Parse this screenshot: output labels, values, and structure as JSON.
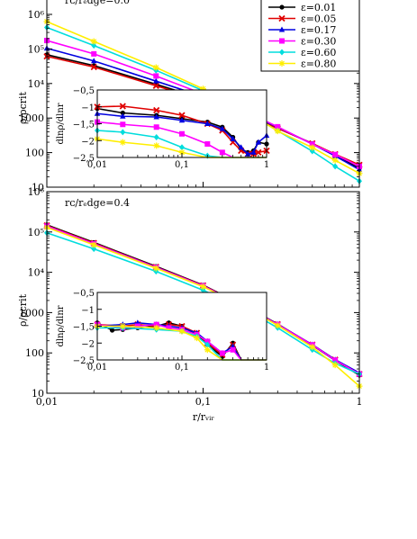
{
  "chart_data": [
    {
      "type": "line",
      "panel": "top",
      "annotation": "rᴄ/rₑdge=0.0",
      "xlabel": "r/rᵥᵢᵣ",
      "ylabel": "ρ/ρcrit",
      "xscale": "log",
      "yscale": "log",
      "xlim": [
        0.01,
        1
      ],
      "ylim": [
        10,
        1000000
      ],
      "x_ticks": [
        "0,01",
        "0,1",
        "1"
      ],
      "y_ticks": [
        "10",
        "100",
        "1000",
        "10⁴",
        "10⁵",
        "10⁶"
      ],
      "legend_position": "top-right",
      "series": [
        {
          "name": "ε=0.01",
          "color": "#000000",
          "marker": "circle",
          "x": [
            0.01,
            0.02,
            0.05,
            0.1,
            0.2,
            0.3,
            0.5,
            0.7,
            1.0
          ],
          "y": [
            68000,
            33000,
            9500,
            3600,
            1120,
            520,
            182,
            83,
            35
          ]
        },
        {
          "name": "ε=0.05",
          "color": "#e00000",
          "marker": "x",
          "x": [
            0.01,
            0.02,
            0.05,
            0.1,
            0.2,
            0.3,
            0.5,
            0.7,
            1.0
          ],
          "y": [
            61000,
            30000,
            8600,
            3300,
            1070,
            505,
            185,
            90,
            44
          ]
        },
        {
          "name": "ε=0.17",
          "color": "#0000e0",
          "marker": "triangle",
          "x": [
            0.01,
            0.02,
            0.05,
            0.1,
            0.2,
            0.3,
            0.5,
            0.7,
            1.0
          ],
          "y": [
            105000,
            45000,
            11700,
            4200,
            1230,
            545,
            178,
            80,
            32
          ]
        },
        {
          "name": "ε=0.30",
          "color": "#ff00ff",
          "marker": "square",
          "x": [
            0.01,
            0.02,
            0.05,
            0.1,
            0.2,
            0.3,
            0.5,
            0.7,
            1.0
          ],
          "y": [
            175000,
            72000,
            16500,
            5000,
            1340,
            560,
            175,
            88,
            40
          ]
        },
        {
          "name": "ε=0.60",
          "color": "#00dddd",
          "marker": "diamond",
          "x": [
            0.01,
            0.02,
            0.05,
            0.1,
            0.2,
            0.3,
            0.5,
            0.7,
            1.0
          ],
          "y": [
            420000,
            125000,
            24000,
            6200,
            1250,
            430,
            110,
            40,
            15
          ]
        },
        {
          "name": "ε=0.80",
          "color": "#ffee00",
          "marker": "star",
          "x": [
            0.01,
            0.02,
            0.05,
            0.1,
            0.2,
            0.3,
            0.5,
            0.7,
            1.0
          ],
          "y": [
            620000,
            165000,
            29000,
            7000,
            1300,
            420,
            140,
            60,
            25
          ]
        }
      ],
      "inset": {
        "ylabel": "dlnρ/dlnr",
        "xscale": "log",
        "xlim": [
          0.01,
          1
        ],
        "ylim": [
          -2.5,
          -0.5
        ],
        "x_ticks": [
          "0,01",
          "0,1",
          "1"
        ],
        "y_ticks": [
          "−0,5",
          "−1",
          "−1,5",
          "−2",
          "−2,5"
        ],
        "series": [
          {
            "name": "ε=0.01",
            "x": [
              0.01,
              0.02,
              0.05,
              0.1,
              0.2,
              0.3,
              0.4,
              0.5,
              0.6,
              0.7,
              0.8,
              1.0
            ],
            "y": [
              -1.05,
              -1.18,
              -1.25,
              -1.35,
              -1.45,
              -1.6,
              -1.9,
              -2.25,
              -2.35,
              -2.3,
              -2.05,
              -2.1
            ]
          },
          {
            "name": "ε=0.05",
            "x": [
              0.01,
              0.02,
              0.05,
              0.1,
              0.2,
              0.3,
              0.4,
              0.5,
              0.6,
              0.7,
              0.8,
              1.0
            ],
            "y": [
              -1.0,
              -0.98,
              -1.1,
              -1.25,
              -1.5,
              -1.7,
              -2.05,
              -2.3,
              -2.4,
              -2.4,
              -2.35,
              -2.3
            ]
          },
          {
            "name": "ε=0.17",
            "x": [
              0.01,
              0.02,
              0.05,
              0.1,
              0.2,
              0.3,
              0.4,
              0.5,
              0.6,
              0.7,
              0.8,
              1.0
            ],
            "y": [
              -1.2,
              -1.28,
              -1.3,
              -1.4,
              -1.5,
              -1.65,
              -1.95,
              -2.2,
              -2.4,
              -2.35,
              -2.05,
              -1.85
            ]
          },
          {
            "name": "ε=0.30",
            "x": [
              0.01,
              0.02,
              0.05,
              0.1,
              0.2,
              0.3,
              0.4,
              0.5,
              1.0
            ],
            "y": [
              -1.45,
              -1.52,
              -1.6,
              -1.8,
              -2.1,
              -2.35,
              -2.5,
              -2.5,
              -2.5
            ]
          },
          {
            "name": "ε=0.60",
            "x": [
              0.01,
              0.02,
              0.05,
              0.1,
              0.2,
              0.3,
              0.4,
              1.0
            ],
            "y": [
              -1.7,
              -1.75,
              -1.9,
              -2.2,
              -2.45,
              -2.5,
              -2.5,
              -2.5
            ]
          },
          {
            "name": "ε=0.80",
            "x": [
              0.01,
              0.02,
              0.05,
              0.1,
              0.2,
              0.3,
              1.0
            ],
            "y": [
              -1.95,
              -2.05,
              -2.15,
              -2.35,
              -2.5,
              -2.5,
              -2.5
            ]
          }
        ]
      }
    },
    {
      "type": "line",
      "panel": "bottom",
      "annotation": "rᴄ/rₑdge=0.4",
      "xlabel": "r/rᵥᵢᵣ",
      "ylabel": "ρ/ρcrit",
      "xscale": "log",
      "yscale": "log",
      "xlim": [
        0.01,
        1
      ],
      "ylim": [
        10,
        1000000
      ],
      "x_ticks": [
        "0,01",
        "0,1",
        "1"
      ],
      "y_ticks": [
        "10",
        "100",
        "1000",
        "10⁴",
        "10⁵",
        "10⁶"
      ],
      "series": [
        {
          "name": "ε=0.01",
          "color": "#000000",
          "marker": "circle",
          "x": [
            0.01,
            0.02,
            0.05,
            0.1,
            0.2,
            0.3,
            0.5,
            0.7,
            1.0
          ],
          "y": [
            150000,
            55000,
            14000,
            4800,
            1250,
            520,
            155,
            65,
            28
          ]
        },
        {
          "name": "ε=0.05",
          "color": "#e00000",
          "marker": "x",
          "x": [
            0.01,
            0.02,
            0.05,
            0.1,
            0.2,
            0.3,
            0.5,
            0.7,
            1.0
          ],
          "y": [
            145000,
            53000,
            13600,
            4700,
            1230,
            515,
            160,
            68,
            30
          ]
        },
        {
          "name": "ε=0.17",
          "color": "#0000e0",
          "marker": "triangle",
          "x": [
            0.01,
            0.02,
            0.05,
            0.1,
            0.2,
            0.3,
            0.5,
            0.7,
            1.0
          ],
          "y": [
            140000,
            51000,
            13300,
            4600,
            1220,
            510,
            160,
            68,
            32
          ]
        },
        {
          "name": "ε=0.30",
          "color": "#ff00ff",
          "marker": "square",
          "x": [
            0.01,
            0.02,
            0.05,
            0.1,
            0.2,
            0.3,
            0.5,
            0.7,
            1.0
          ],
          "y": [
            140000,
            51000,
            13200,
            4600,
            1210,
            505,
            158,
            66,
            30
          ]
        },
        {
          "name": "ε=0.60",
          "color": "#00dddd",
          "marker": "diamond",
          "x": [
            0.01,
            0.02,
            0.05,
            0.1,
            0.2,
            0.3,
            0.5,
            0.7,
            1.0
          ],
          "y": [
            95000,
            38000,
            10500,
            3600,
            1030,
            420,
            120,
            55,
            30
          ]
        },
        {
          "name": "ε=0.80",
          "color": "#ffee00",
          "marker": "star",
          "x": [
            0.01,
            0.02,
            0.05,
            0.1,
            0.2,
            0.3,
            0.5,
            0.7,
            1.0
          ],
          "y": [
            130000,
            48000,
            12600,
            4400,
            1180,
            480,
            140,
            50,
            15
          ]
        }
      ],
      "inset": {
        "ylabel": "dlnρ/dlnr",
        "xscale": "log",
        "xlim": [
          0.01,
          1
        ],
        "ylim": [
          -2.5,
          -0.5
        ],
        "x_ticks": [
          "0,01",
          "0,1",
          "1"
        ],
        "y_ticks": [
          "−0,5",
          "−1",
          "−1,5",
          "−2",
          "−2,5"
        ],
        "series": [
          {
            "name": "ε=0.01",
            "x": [
              0.01,
              0.015,
              0.02,
              0.03,
              0.05,
              0.07,
              0.1,
              0.15,
              0.2,
              0.3,
              0.4,
              0.5,
              1.0
            ],
            "y": [
              -1.4,
              -1.62,
              -1.6,
              -1.55,
              -1.5,
              -1.4,
              -1.5,
              -1.75,
              -2.05,
              -2.4,
              -2.0,
              -2.5,
              -2.5
            ]
          },
          {
            "name": "ε=0.05",
            "x": [
              0.01,
              0.02,
              0.03,
              0.05,
              0.07,
              0.1,
              0.15,
              0.2,
              0.3,
              0.4,
              0.5,
              1.0
            ],
            "y": [
              -1.45,
              -1.5,
              -1.45,
              -1.5,
              -1.45,
              -1.5,
              -1.7,
              -2.0,
              -2.35,
              -2.05,
              -2.5,
              -2.5
            ]
          },
          {
            "name": "ε=0.17",
            "x": [
              0.01,
              0.02,
              0.03,
              0.05,
              0.07,
              0.1,
              0.15,
              0.2,
              0.3,
              0.4,
              0.5,
              1.0
            ],
            "y": [
              -1.5,
              -1.45,
              -1.4,
              -1.45,
              -1.5,
              -1.55,
              -1.7,
              -1.95,
              -2.3,
              -2.1,
              -2.5,
              -2.5
            ]
          },
          {
            "name": "ε=0.30",
            "x": [
              0.01,
              0.02,
              0.03,
              0.05,
              0.07,
              0.1,
              0.15,
              0.2,
              0.3,
              0.4,
              0.5,
              1.0
            ],
            "y": [
              -1.45,
              -1.55,
              -1.5,
              -1.45,
              -1.55,
              -1.6,
              -1.75,
              -1.95,
              -2.3,
              -2.2,
              -2.5,
              -2.5
            ]
          },
          {
            "name": "ε=0.60",
            "x": [
              0.01,
              0.02,
              0.05,
              0.1,
              0.15,
              0.2,
              0.3,
              0.4,
              1.0
            ],
            "y": [
              -1.55,
              -1.55,
              -1.6,
              -1.65,
              -1.8,
              -2.05,
              -2.5,
              -2.5,
              -2.5
            ]
          },
          {
            "name": "ε=0.80",
            "x": [
              0.01,
              0.02,
              0.05,
              0.1,
              0.15,
              0.2,
              0.3,
              1.0
            ],
            "y": [
              -1.5,
              -1.5,
              -1.55,
              -1.65,
              -1.85,
              -2.2,
              -2.5,
              -2.5
            ]
          }
        ]
      }
    }
  ]
}
